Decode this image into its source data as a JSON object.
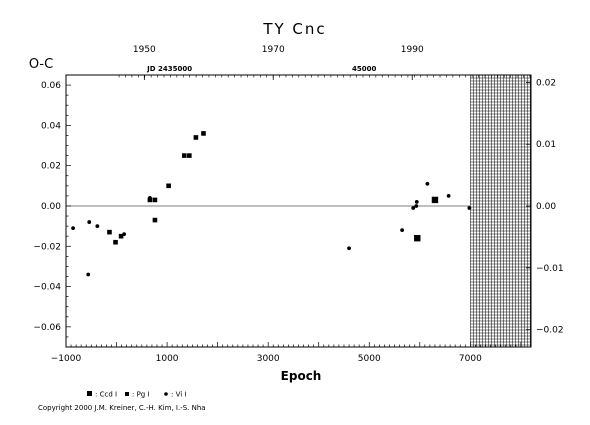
{
  "chart_data": {
    "type": "scatter",
    "title": "TY Cnc",
    "ylabel": "O-C",
    "xlabel": "Epoch",
    "xlim": [
      -1000,
      8200
    ],
    "ylim": [
      -0.07,
      0.065
    ],
    "y2lim": [
      -0.0228,
      0.0212
    ],
    "grid": false,
    "x_ticks": [
      -1000,
      1000,
      3000,
      5000,
      7000
    ],
    "x_tick_labels": [
      "−1000",
      "1000",
      "3000",
      "5000",
      "7000"
    ],
    "y_ticks": [
      -0.06,
      -0.04,
      -0.02,
      0.0,
      0.02,
      0.04,
      0.06
    ],
    "y_tick_labels": [
      "−0.06",
      "−0.04",
      "−0.02",
      "0.00",
      "0.02",
      "0.04",
      "0.06"
    ],
    "y2_ticks": [
      -0.02,
      -0.01,
      0.0,
      0.01,
      0.02
    ],
    "y2_tick_labels": [
      "−0.02",
      "−0.01",
      "0.00",
      "0.01",
      "0.02"
    ],
    "top_year_ticks": [
      1950,
      1970,
      1990
    ],
    "top_year_labels": [
      "1950",
      "1970",
      "1990"
    ],
    "top_year_epochs": [
      550,
      3100,
      5850
    ],
    "jd_labels": [
      {
        "text": "JD 2435000",
        "epoch": 1050
      },
      {
        "text": "45000",
        "epoch": 4900
      }
    ],
    "hatched_region": [
      7000,
      8200
    ],
    "series": [
      {
        "name": "Ccd",
        "marker": "square-large",
        "x": [
          5950,
          6300
        ],
        "y": [
          -0.016,
          0.003
        ]
      },
      {
        "name": "Pg",
        "marker": "square-small",
        "x": [
          -140,
          -20,
          90,
          660,
          760,
          760,
          1030,
          1340,
          1440,
          1570,
          1720
        ],
        "y": [
          -0.013,
          -0.018,
          -0.015,
          0.003,
          -0.007,
          0.003,
          0.01,
          0.025,
          0.025,
          0.034,
          0.036
        ]
      },
      {
        "name": "Vi",
        "marker": "dot",
        "x": [
          -860,
          -560,
          -540,
          -380,
          150,
          660,
          4600,
          5650,
          5870,
          5930,
          5940,
          6150,
          6570,
          6980
        ],
        "y": [
          -0.011,
          -0.034,
          -0.008,
          -0.01,
          -0.014,
          0.004,
          -0.021,
          -0.012,
          -0.001,
          0.0,
          0.002,
          0.011,
          0.005,
          -0.001
        ]
      }
    ],
    "legend_position": "bottom-left",
    "legend_labels": [
      ": Ccd I",
      ": Pg I",
      ": Vi I"
    ]
  },
  "footer": {
    "copyright": "Copyright 2000 J.M. Kreiner, C.-H. Kim, I.-S. Nha"
  }
}
